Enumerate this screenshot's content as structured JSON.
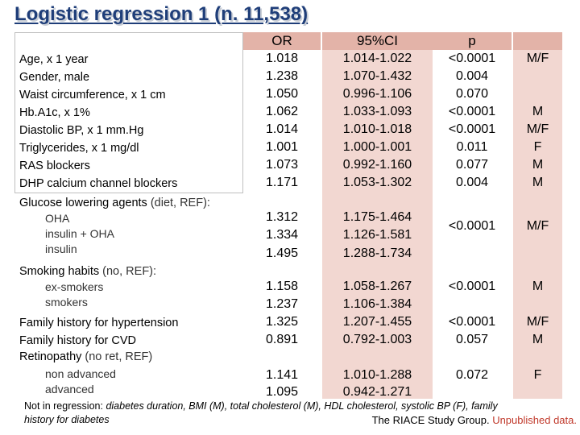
{
  "title": "Logistic regression 1 (n. 11,538)",
  "header": {
    "or": "OR",
    "ci": "95%CI",
    "p": "p"
  },
  "rows": [
    {
      "label": "Age, x 1 year",
      "or": "1.018",
      "ci": "1.014-1.022",
      "p": "<0.0001",
      "sex": "M/F"
    },
    {
      "label": "Gender, male",
      "or": "1.238",
      "ci": "1.070-1.432",
      "p": "0.004",
      "sex": ""
    },
    {
      "label": "Waist circumference, x 1 cm",
      "or": "1.050",
      "ci": "0.996-1.106",
      "p": "0.070",
      "sex": ""
    },
    {
      "label": "Hb.A1c, x 1%",
      "or": "1.062",
      "ci": "1.033-1.093",
      "p": "<0.0001",
      "sex": "M"
    },
    {
      "label": "Diastolic BP, x 1 mm.Hg",
      "or": "1.014",
      "ci": "1.010-1.018",
      "p": "<0.0001",
      "sex": "M/F"
    },
    {
      "label": "Triglycerides, x 1 mg/dl",
      "or": "1.001",
      "ci": "1.000-1.001",
      "p": "0.011",
      "sex": "F"
    },
    {
      "label": "RAS blockers",
      "or": "1.073",
      "ci": "0.992-1.160",
      "p": "0.077",
      "sex": "M"
    },
    {
      "label": "DHP calcium channel blockers",
      "or": "1.171",
      "ci": "1.053-1.302",
      "p": "0.004",
      "sex": "M"
    }
  ],
  "glucose": {
    "label": "Glucose lowering agents",
    "ref": " (diet, REF):",
    "subs": [
      "OHA",
      "insulin + OHA",
      "insulin"
    ],
    "or": [
      "1.312",
      "1.334",
      "1.495"
    ],
    "ci": [
      "1.175-1.464",
      "1.126-1.581",
      "1.288-1.734"
    ],
    "p": "<0.0001",
    "sex": "M/F"
  },
  "smoking": {
    "label": "Smoking habits",
    "ref": " (no, REF):",
    "subs": [
      "ex-smokers",
      "smokers"
    ],
    "or": [
      "1.158",
      "1.237"
    ],
    "ci": [
      "1.058-1.267",
      "1.106-1.384"
    ],
    "p": "<0.0001",
    "sex": "M"
  },
  "family": [
    {
      "label": "Family history for hypertension",
      "or": "1.325",
      "ci": "1.207-1.455",
      "p": "<0.0001",
      "sex": "M/F"
    },
    {
      "label": "Family history for CVD",
      "or": "0.891",
      "ci": "0.792-1.003",
      "p": "0.057",
      "sex": "M"
    }
  ],
  "retinopathy": {
    "label": "Retinopathy",
    "ref": " (no ret, REF)",
    "subs": [
      "non advanced",
      "advanced"
    ],
    "or": [
      "1.141",
      "1.095"
    ],
    "ci": [
      "1.010-1.288",
      "0.942-1.271"
    ],
    "p": "0.072",
    "sex": "F"
  },
  "footnote": {
    "prefix": "Not in regression: ",
    "line1": "diabetes duration, BMI (M), total cholesterol (M), HDL cholesterol, systolic BP (F), family",
    "line2": "history for diabetes"
  },
  "credit": {
    "text": "The RIACE Study Group. ",
    "highlight": "Unpublished data."
  }
}
